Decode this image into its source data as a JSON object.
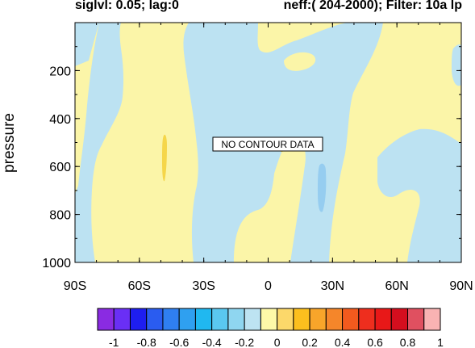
{
  "header": {
    "left": "siglvl: 0.05; lag:0",
    "right": "neff:( 204-2000); Filter: 10a lp"
  },
  "chart_data": {
    "type": "heatmap",
    "xlabel": "",
    "ylabel": "pressure",
    "x_ticks": [
      "90S",
      "60S",
      "30S",
      "0",
      "30N",
      "60N",
      "90N"
    ],
    "x_range": [
      -90,
      90
    ],
    "y_ticks": [
      "200",
      "400",
      "600",
      "800",
      "1000"
    ],
    "y_range": [
      1000,
      0
    ],
    "annotation": "NO CONTOUR DATA",
    "colorbar": {
      "levels": [
        "-1",
        "-0.8",
        "-0.6",
        "-0.4",
        "-0.2",
        "0",
        "0.2",
        "0.4",
        "0.6",
        "0.8",
        "1"
      ],
      "colors": [
        "#8a2be2",
        "#6a2ff5",
        "#1e1ef0",
        "#2a5cf0",
        "#2f7ff0",
        "#2fa0f0",
        "#20b8f0",
        "#5ac8f0",
        "#8fd6f0",
        "#bde3f2",
        "#fef9a8",
        "#fcd86a",
        "#fcbf1e",
        "#f8a52a",
        "#f5862a",
        "#f25a1e",
        "#ee2e1e",
        "#e81818",
        "#d40e1e",
        "#e05060",
        "#f9b3b3"
      ]
    },
    "field_colors": {
      "negative": "#bce2f2",
      "positive": "#fbf5a8",
      "accent_negative": "#96cdf0",
      "accent_positive": "#f5d64a"
    }
  }
}
